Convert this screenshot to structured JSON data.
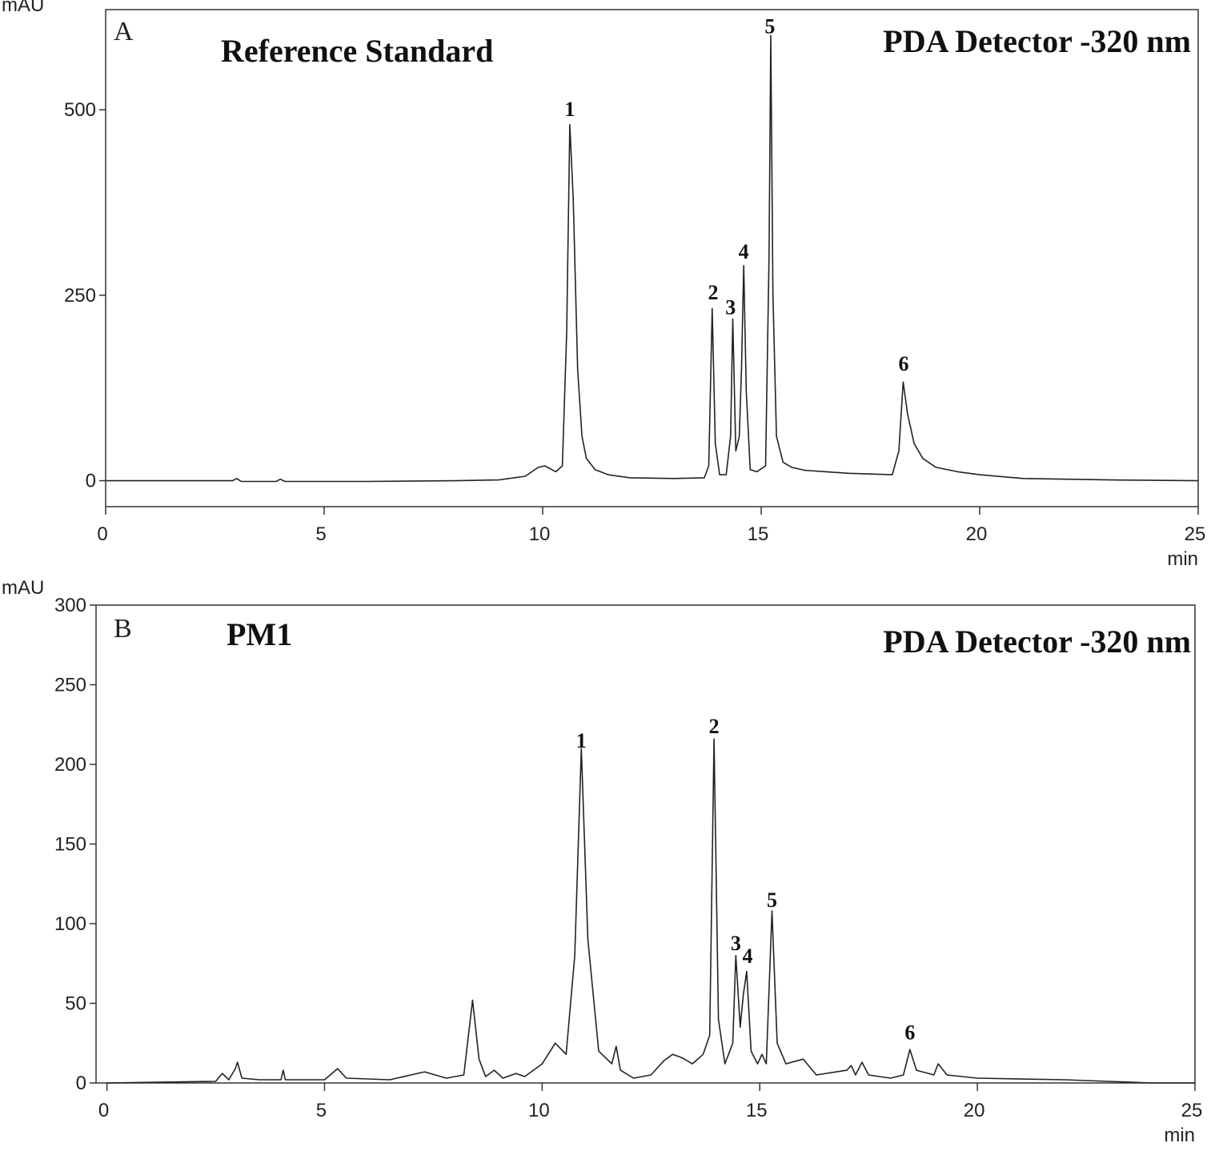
{
  "chart_data": [
    {
      "type": "line",
      "panel_label": "A",
      "title": "Reference Standard",
      "subtitle": "PDA Detector -320 nm",
      "x_label": "min",
      "y_label": "mAU",
      "xlim": [
        0,
        25
      ],
      "ylim": [
        -35,
        635
      ],
      "xticks": [
        0,
        5,
        10,
        15,
        20,
        25
      ],
      "yticks": [
        0,
        250,
        500
      ],
      "x": [
        0,
        2.9,
        3.0,
        3.1,
        3.9,
        4.0,
        4.1,
        6,
        8,
        9,
        9.6,
        9.9,
        10.05,
        10.3,
        10.45,
        10.55,
        10.62,
        10.7,
        10.8,
        10.9,
        11.0,
        11.2,
        11.5,
        12,
        13,
        13.7,
        13.8,
        13.88,
        13.95,
        14.05,
        14.2,
        14.3,
        14.35,
        14.42,
        14.5,
        14.55,
        14.6,
        14.66,
        14.75,
        14.9,
        15.1,
        15.18,
        15.22,
        15.27,
        15.35,
        15.5,
        15.7,
        16,
        17,
        18,
        18.15,
        18.25,
        18.35,
        18.5,
        18.7,
        19,
        19.5,
        20,
        21,
        23,
        25
      ],
      "series": [
        {
          "color": "#222222",
          "values": [
            0,
            0,
            3,
            -1,
            -1,
            2,
            -1,
            -1,
            0,
            1,
            6,
            18,
            20,
            12,
            20,
            200,
            480,
            380,
            150,
            60,
            30,
            15,
            8,
            4,
            3,
            4,
            20,
            232,
            50,
            8,
            8,
            60,
            218,
            40,
            60,
            150,
            290,
            120,
            15,
            12,
            20,
            300,
            600,
            250,
            60,
            25,
            18,
            14,
            10,
            8,
            40,
            133,
            90,
            50,
            30,
            18,
            12,
            8,
            3,
            1,
            0
          ]
        }
      ],
      "annotations": [
        {
          "text": "1",
          "x": 10.62,
          "y": 501
        },
        {
          "text": "2",
          "x": 13.9,
          "y": 254
        },
        {
          "text": "3",
          "x": 14.3,
          "y": 234
        },
        {
          "text": "4",
          "x": 14.6,
          "y": 309
        },
        {
          "text": "5",
          "x": 15.2,
          "y": 613
        },
        {
          "text": "6",
          "x": 18.26,
          "y": 158
        }
      ]
    },
    {
      "type": "line",
      "panel_label": "B",
      "title": "PM1",
      "subtitle": "PDA Detector -320 nm",
      "x_label": "min",
      "y_label": "mAU",
      "xlim": [
        -0.25,
        25
      ],
      "ylim": [
        0,
        300
      ],
      "xticks": [
        0,
        5,
        10,
        15,
        20,
        25
      ],
      "yticks": [
        0,
        50,
        100,
        150,
        200,
        250,
        300
      ],
      "x": [
        0,
        2.5,
        2.65,
        2.8,
        2.95,
        3.0,
        3.1,
        3.5,
        4.0,
        4.05,
        4.1,
        5.0,
        5.3,
        5.5,
        6.5,
        7.3,
        7.8,
        8.2,
        8.4,
        8.55,
        8.7,
        8.9,
        9.1,
        9.4,
        9.6,
        10.0,
        10.3,
        10.55,
        10.75,
        10.9,
        11.05,
        11.3,
        11.6,
        11.7,
        11.8,
        12.1,
        12.5,
        12.8,
        13.0,
        13.2,
        13.45,
        13.7,
        13.85,
        13.95,
        14.05,
        14.2,
        14.38,
        14.45,
        14.55,
        14.62,
        14.7,
        14.8,
        14.95,
        15.05,
        15.15,
        15.28,
        15.4,
        15.6,
        16.0,
        16.3,
        17.0,
        17.1,
        17.2,
        17.35,
        17.5,
        18.0,
        18.3,
        18.45,
        18.6,
        19.0,
        19.1,
        19.3,
        20,
        22,
        24,
        25
      ],
      "series": [
        {
          "color": "#222222",
          "values": [
            0,
            1,
            6,
            2,
            9,
            13,
            3,
            2,
            2,
            8,
            2,
            2,
            9,
            3,
            2,
            7,
            3,
            5,
            52,
            15,
            4,
            8,
            3,
            6,
            4,
            12,
            25,
            18,
            80,
            210,
            90,
            20,
            12,
            23,
            8,
            3,
            5,
            14,
            18,
            16,
            12,
            18,
            30,
            216,
            40,
            12,
            25,
            80,
            35,
            55,
            70,
            20,
            12,
            18,
            12,
            108,
            25,
            12,
            15,
            5,
            8,
            11,
            5,
            13,
            5,
            3,
            5,
            21,
            8,
            5,
            12,
            5,
            3,
            2,
            0,
            0
          ]
        }
      ],
      "annotations": [
        {
          "text": "1",
          "x": 10.9,
          "y": 215
        },
        {
          "text": "2",
          "x": 13.95,
          "y": 224
        },
        {
          "text": "3",
          "x": 14.45,
          "y": 88
        },
        {
          "text": "4",
          "x": 14.72,
          "y": 80
        },
        {
          "text": "5",
          "x": 15.28,
          "y": 115
        },
        {
          "text": "6",
          "x": 18.45,
          "y": 32
        }
      ]
    }
  ]
}
